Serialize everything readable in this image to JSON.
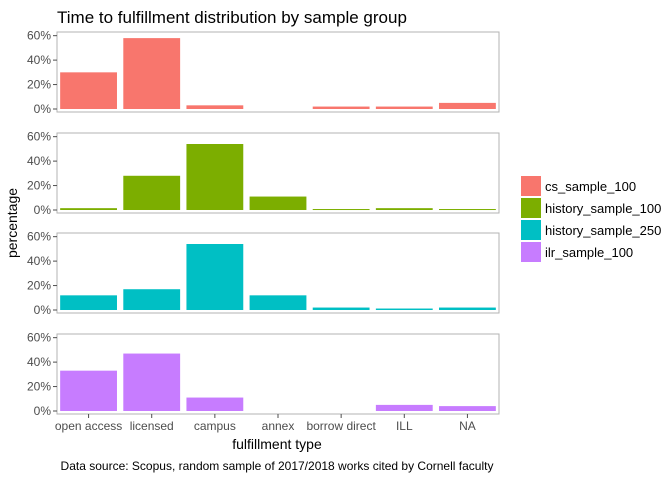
{
  "chart_data": {
    "type": "bar",
    "title": "Time to fulfillment distribution by sample group",
    "xlabel": "fulfillment type",
    "ylabel": "percentage",
    "caption": "Data source: Scopus, random sample of 2017/2018 works cited by Cornell faculty",
    "categories": [
      "open access",
      "licensed",
      "campus",
      "annex",
      "borrow direct",
      "ILL",
      "NA"
    ],
    "ylim": [
      0,
      60
    ],
    "yticks": [
      0,
      20,
      40,
      60
    ],
    "ytick_labels": [
      "0%",
      "20%",
      "40%",
      "60%"
    ],
    "facets": "rows, one panel per series, shared x axis",
    "legend_position": "right",
    "series": [
      {
        "name": "cs_sample_100",
        "color": "#F8766D",
        "values": [
          30,
          58,
          3,
          0,
          2,
          2,
          5
        ]
      },
      {
        "name": "history_sample_100",
        "color": "#7CAE00",
        "values": [
          1.5,
          28,
          54,
          11,
          0.8,
          1.5,
          0.8
        ]
      },
      {
        "name": "history_sample_250",
        "color": "#00BFC4",
        "values": [
          12,
          17,
          54,
          12,
          2,
          1.2,
          2
        ]
      },
      {
        "name": "ilr_sample_100",
        "color": "#C77CFF",
        "values": [
          33,
          47,
          11,
          0,
          0,
          5,
          4
        ]
      }
    ]
  }
}
